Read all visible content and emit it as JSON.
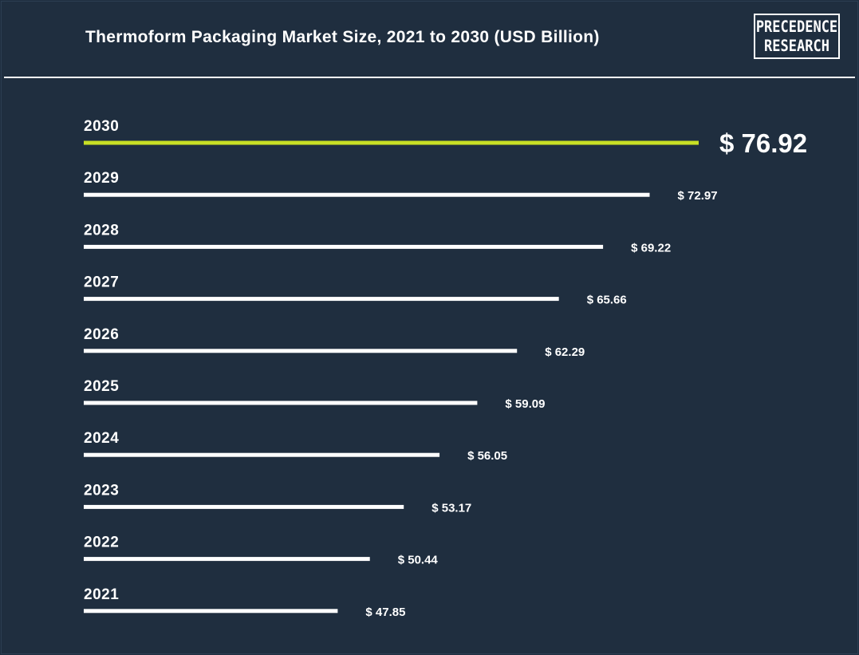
{
  "header": {
    "title": "Thermoform Packaging Market Size, 2021 to 2030 (USD Billion)",
    "logo_line1": "PRECEDENCE",
    "logo_line2": "RESEARCH"
  },
  "colors": {
    "background": "#1f2e3f",
    "bar": "#ffffff",
    "highlight_bar": "#c8e025"
  },
  "chart_data": {
    "type": "bar",
    "orientation": "horizontal",
    "title": "Thermoform Packaging Market Size, 2021 to 2030 (USD Billion)",
    "categories": [
      "2030",
      "2029",
      "2028",
      "2027",
      "2026",
      "2025",
      "2024",
      "2023",
      "2022",
      "2021"
    ],
    "values": [
      76.92,
      72.97,
      69.22,
      65.66,
      62.29,
      59.09,
      56.05,
      53.17,
      50.44,
      47.85
    ],
    "value_labels": [
      "$ 76.92",
      "$ 72.97",
      "$ 69.22",
      "$ 65.66",
      "$ 62.29",
      "$ 59.09",
      "$ 56.05",
      "$ 53.17",
      "$ 50.44",
      "$ 47.85"
    ],
    "highlight_category": "2030",
    "xlim": [
      27.4,
      76.92
    ],
    "grid": false,
    "legend": "none"
  }
}
